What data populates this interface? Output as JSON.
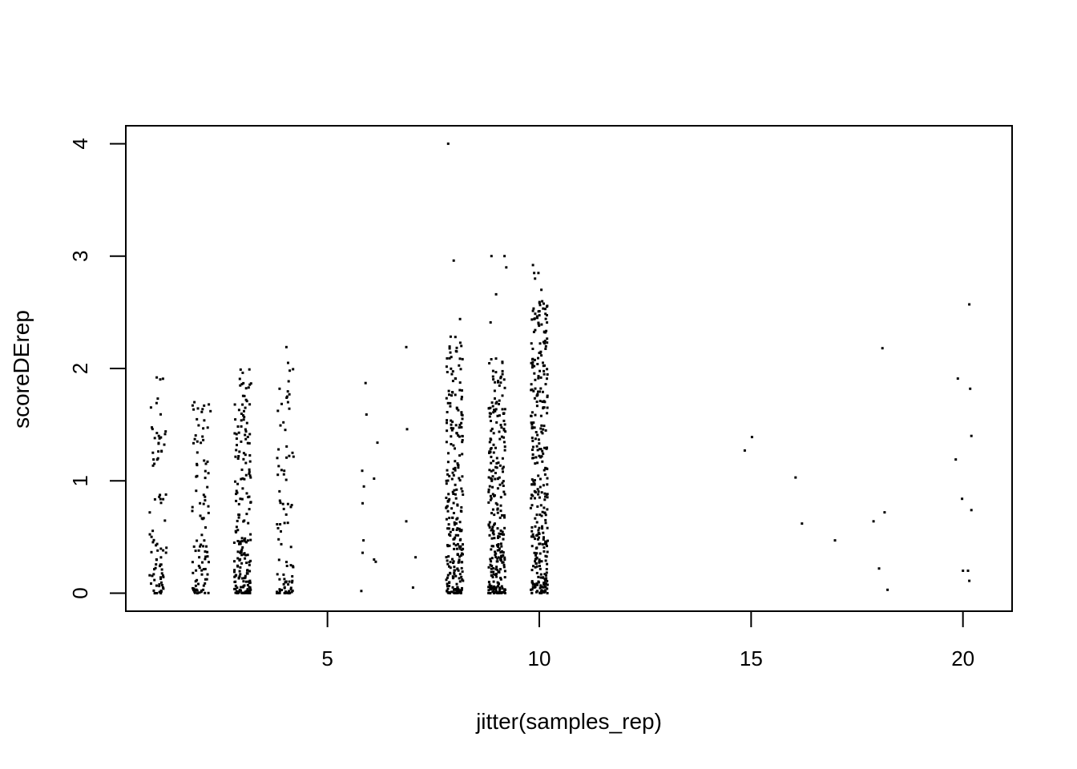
{
  "chart_data": {
    "type": "scatter",
    "title": "",
    "xlabel": "jitter(samples_rep)",
    "ylabel": "scoreDErep",
    "xlim": [
      0.24,
      21.16
    ],
    "ylim": [
      -0.16,
      4.16
    ],
    "x_ticks": [
      5,
      10,
      15,
      20
    ],
    "y_ticks": [
      0,
      1,
      2,
      3,
      4
    ],
    "grid": false,
    "legend": "none",
    "point_color": "#000000",
    "marker": "small filled square",
    "notes_on_points": "Each group is a vertical strip of jittered points around an integer x value.",
    "groups": [
      {
        "x": 1,
        "n": 80,
        "ymax": 1.92,
        "skew": 2.2,
        "outliers": [
          [
            0.97,
            1.92
          ],
          [
            1.18,
            1.44
          ],
          [
            1.02,
            1.4
          ],
          [
            1.0,
            1.2
          ],
          [
            0.88,
            1.25
          ]
        ]
      },
      {
        "x": 2,
        "n": 95,
        "ymax": 1.7,
        "skew": 2.0,
        "outliers": [
          [
            1.86,
            1.7
          ],
          [
            2.2,
            1.68
          ],
          [
            2.24,
            1.62
          ],
          [
            1.93,
            1.35
          ],
          [
            2.17,
            1.17
          ]
        ]
      },
      {
        "x": 3,
        "n": 200,
        "ymax": 2.0,
        "skew": 2.0,
        "outliers": [
          [
            2.95,
            1.99
          ],
          [
            2.98,
            1.86
          ],
          [
            3.14,
            1.83
          ],
          [
            3.1,
            1.71
          ],
          [
            3.06,
            1.65
          ],
          [
            3.03,
            1.62
          ]
        ]
      },
      {
        "x": 4,
        "n": 85,
        "ymax": 2.2,
        "skew": 2.4,
        "outliers": [
          [
            4.03,
            2.19
          ],
          [
            4.07,
            2.05
          ],
          [
            3.87,
            1.82
          ],
          [
            4.1,
            1.77
          ],
          [
            4.05,
            1.75
          ],
          [
            3.96,
            1.52
          ]
        ]
      },
      {
        "x": 6,
        "n": 0,
        "points": [
          [
            5.9,
            1.87
          ],
          [
            5.92,
            1.59
          ],
          [
            5.82,
            1.09
          ],
          [
            5.86,
            0.95
          ],
          [
            6.1,
            1.02
          ],
          [
            6.18,
            1.34
          ],
          [
            5.83,
            0.8
          ],
          [
            5.85,
            0.47
          ],
          [
            5.83,
            0.36
          ],
          [
            6.1,
            0.3
          ],
          [
            6.14,
            0.28
          ],
          [
            5.8,
            0.02
          ]
        ]
      },
      {
        "x": 7,
        "n": 0,
        "points": [
          [
            6.86,
            2.19
          ],
          [
            6.88,
            1.46
          ],
          [
            6.86,
            0.64
          ],
          [
            7.08,
            0.32
          ],
          [
            7.02,
            0.05
          ]
        ]
      },
      {
        "x": 8,
        "n": 260,
        "ymax": 2.3,
        "skew": 1.7,
        "outliers": [
          [
            7.85,
            4.0
          ],
          [
            7.98,
            2.96
          ],
          [
            8.13,
            2.44
          ],
          [
            8.02,
            2.28
          ],
          [
            8.16,
            2.2
          ]
        ]
      },
      {
        "x": 9,
        "n": 280,
        "ymax": 2.1,
        "skew": 1.8,
        "outliers": [
          [
            8.87,
            3.0
          ],
          [
            9.18,
            3.0
          ],
          [
            9.22,
            2.9
          ],
          [
            8.98,
            2.66
          ],
          [
            8.85,
            2.41
          ],
          [
            9.13,
            2.05
          ]
        ]
      },
      {
        "x": 10,
        "n": 320,
        "ymax": 2.6,
        "skew": 1.6,
        "outliers": [
          [
            9.85,
            2.92
          ],
          [
            9.88,
            2.85
          ],
          [
            9.98,
            2.85
          ],
          [
            9.9,
            2.8
          ],
          [
            10.05,
            2.7
          ],
          [
            10.18,
            2.55
          ],
          [
            10.14,
            2.53
          ]
        ]
      },
      {
        "x": 15,
        "n": 0,
        "points": [
          [
            14.85,
            1.27
          ],
          [
            15.02,
            1.39
          ]
        ]
      },
      {
        "x": 16,
        "n": 0,
        "points": [
          [
            16.05,
            1.03
          ],
          [
            16.2,
            0.62
          ]
        ]
      },
      {
        "x": 17,
        "n": 0,
        "points": [
          [
            16.98,
            0.47
          ]
        ]
      },
      {
        "x": 18,
        "n": 0,
        "points": [
          [
            18.1,
            2.18
          ],
          [
            18.15,
            0.72
          ],
          [
            17.89,
            0.64
          ],
          [
            18.02,
            0.22
          ],
          [
            18.22,
            0.03
          ]
        ]
      },
      {
        "x": 20,
        "n": 0,
        "points": [
          [
            20.15,
            2.57
          ],
          [
            19.88,
            1.91
          ],
          [
            20.17,
            1.82
          ],
          [
            20.2,
            1.4
          ],
          [
            19.83,
            1.19
          ],
          [
            19.98,
            0.84
          ],
          [
            20.2,
            0.74
          ],
          [
            20.0,
            0.2
          ],
          [
            20.12,
            0.2
          ],
          [
            20.15,
            0.11
          ]
        ]
      }
    ]
  }
}
